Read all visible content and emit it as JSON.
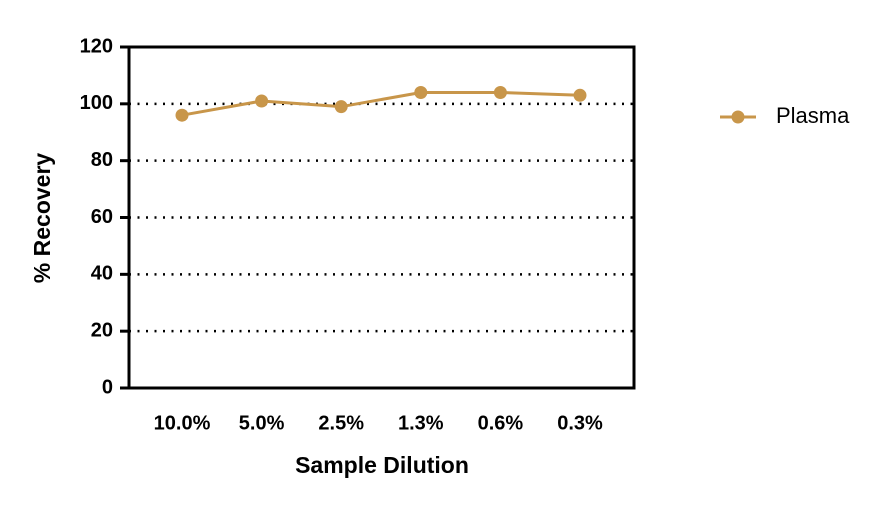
{
  "chart_data": {
    "type": "line",
    "x_label": "Sample Dilution",
    "y_label": "% Recovery",
    "categories": [
      "10.0%",
      "5.0%",
      "2.5%",
      "1.3%",
      "0.6%",
      "0.3%"
    ],
    "series": [
      {
        "name": "Plasma",
        "color": "#c8964a",
        "values": [
          96,
          101,
          99,
          104,
          104,
          103
        ]
      }
    ],
    "ylim": [
      0,
      120
    ],
    "yticks": [
      0,
      20,
      40,
      60,
      80,
      100,
      120
    ],
    "grid": true,
    "legend": "right"
  }
}
